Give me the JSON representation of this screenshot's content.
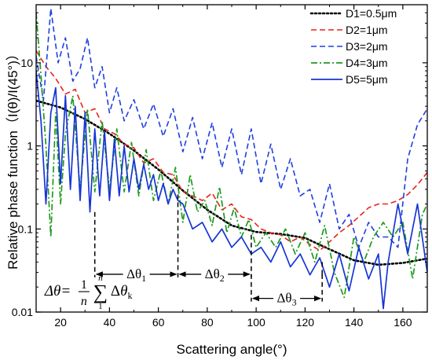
{
  "chart_data": {
    "type": "line",
    "xlabel": "Scattering angle(°)",
    "ylabel": "Relative phase function（I(θ)/I(45°)）",
    "xlim": [
      10,
      170
    ],
    "ylim": [
      0.01,
      50
    ],
    "yscale": "log",
    "x_ticks": [
      20,
      40,
      60,
      80,
      100,
      120,
      140,
      160
    ],
    "x_tick_labels": [
      "20",
      "40",
      "60",
      "80",
      "100",
      "120",
      "140",
      "160"
    ],
    "y_ticks": [
      0.01,
      0.1,
      1,
      10
    ],
    "y_tick_labels": [
      "0.01",
      "0.1",
      "1",
      "10"
    ],
    "grid": false,
    "legend_position": "top-right",
    "series": [
      {
        "name": "D1=0.5μm",
        "color": "#000000",
        "dash": "dotted",
        "x": [
          10,
          20,
          30,
          40,
          50,
          60,
          70,
          80,
          90,
          100,
          110,
          120,
          130,
          140,
          150,
          160,
          170
        ],
        "y": [
          3.5,
          2.9,
          2.1,
          1.4,
          0.88,
          0.52,
          0.29,
          0.17,
          0.11,
          0.092,
          0.087,
          0.078,
          0.057,
          0.042,
          0.037,
          0.039,
          0.044
        ]
      },
      {
        "name": "D2=1μm",
        "color": "#e8231c",
        "dash": "dashed",
        "x": [
          10,
          14,
          18,
          22,
          26,
          30,
          34,
          38,
          42,
          46,
          50,
          54,
          58,
          62,
          66,
          70,
          74,
          78,
          82,
          86,
          90,
          94,
          98,
          102,
          106,
          110,
          114,
          118,
          122,
          126,
          130,
          134,
          138,
          142,
          146,
          150,
          154,
          158,
          162,
          166,
          170
        ],
        "y": [
          14,
          9,
          6.5,
          4.2,
          4.8,
          2.5,
          2.8,
          1.6,
          1.4,
          1.05,
          0.95,
          0.62,
          0.7,
          0.48,
          0.45,
          0.28,
          0.25,
          0.22,
          0.27,
          0.17,
          0.2,
          0.14,
          0.13,
          0.1,
          0.09,
          0.085,
          0.07,
          0.08,
          0.065,
          0.055,
          0.07,
          0.09,
          0.11,
          0.14,
          0.18,
          0.2,
          0.2,
          0.22,
          0.26,
          0.34,
          0.48
        ]
      },
      {
        "name": "D3=2μm",
        "color": "#1f3fe0",
        "dash": "dashed",
        "x": [
          10,
          13,
          16,
          19,
          22,
          25,
          28,
          31,
          34,
          37,
          40,
          43,
          46,
          50,
          54,
          58,
          62,
          66,
          70,
          74,
          78,
          82,
          86,
          90,
          94,
          98,
          102,
          106,
          110,
          114,
          118,
          122,
          126,
          130,
          134,
          138,
          142,
          146,
          150,
          154,
          158,
          162,
          166,
          170
        ],
        "y": [
          12,
          3.5,
          45,
          10,
          20,
          6,
          8.5,
          20,
          5,
          9,
          2.5,
          5,
          2,
          3.6,
          1.6,
          3.2,
          1.3,
          2.8,
          0.85,
          2.2,
          0.7,
          1.9,
          0.55,
          1.6,
          0.45,
          1.6,
          0.35,
          1.05,
          0.3,
          0.7,
          0.25,
          0.3,
          0.12,
          0.35,
          0.1,
          0.15,
          0.06,
          0.12,
          0.08,
          0.08,
          0.06,
          0.7,
          1.8,
          2.8
        ]
      },
      {
        "name": "D4=3μm",
        "color": "#1e9a1e",
        "dash": "dashdot",
        "x": [
          10,
          12,
          14,
          16,
          18,
          20,
          22,
          25,
          28,
          31,
          34,
          37,
          40,
          43,
          46,
          49,
          52,
          55,
          58,
          61,
          64,
          67,
          70,
          73,
          76,
          79,
          82,
          85,
          88,
          91,
          94,
          97,
          100,
          104,
          108,
          112,
          116,
          120,
          124,
          128,
          132,
          136,
          140,
          144,
          148,
          152,
          156,
          160,
          164,
          168,
          170
        ],
        "y": [
          40,
          7,
          1.0,
          0.08,
          2.5,
          0.2,
          1.4,
          4.0,
          0.3,
          2.8,
          0.28,
          2.0,
          0.3,
          1.6,
          0.28,
          1.1,
          0.25,
          0.9,
          0.22,
          0.5,
          0.2,
          0.55,
          0.12,
          0.45,
          0.16,
          0.22,
          0.11,
          0.32,
          0.09,
          0.18,
          0.08,
          0.13,
          0.06,
          0.09,
          0.06,
          0.1,
          0.05,
          0.09,
          0.04,
          0.11,
          0.03,
          0.015,
          0.08,
          0.04,
          0.08,
          0.12,
          0.08,
          0.12,
          0.025,
          0.15,
          0.2
        ]
      },
      {
        "name": "D5=5μm",
        "color": "#1635d6",
        "dash": "solid",
        "x": [
          10,
          12,
          14,
          16,
          18,
          20,
          22,
          24,
          26,
          28,
          30,
          32,
          34,
          36,
          38,
          40,
          42,
          44,
          46,
          48,
          50,
          52,
          54,
          56,
          58,
          60,
          62,
          64,
          66,
          68,
          70,
          74,
          78,
          82,
          86,
          90,
          94,
          98,
          102,
          106,
          110,
          114,
          118,
          122,
          126,
          130,
          134,
          138,
          142,
          146,
          150,
          152,
          154,
          158,
          162,
          166,
          170
        ],
        "y": [
          8,
          2.0,
          0.2,
          2.5,
          5.0,
          0.35,
          4.0,
          0.3,
          3.0,
          0.22,
          2.5,
          0.16,
          1.6,
          0.25,
          1.5,
          0.22,
          1.2,
          0.25,
          1.0,
          0.28,
          0.7,
          0.3,
          0.6,
          0.3,
          0.45,
          0.22,
          0.35,
          0.2,
          0.3,
          0.22,
          0.2,
          0.1,
          0.12,
          0.07,
          0.1,
          0.06,
          0.08,
          0.05,
          0.06,
          0.04,
          0.07,
          0.035,
          0.05,
          0.028,
          0.045,
          0.02,
          0.05,
          0.018,
          0.06,
          0.025,
          0.05,
          0.011,
          0.04,
          0.2,
          0.05,
          0.2,
          0.03
        ]
      }
    ],
    "annotations": {
      "markers": [
        {
          "label": "Δθ1",
          "x": 34,
          "y": 0.16
        },
        {
          "label": "Δθ2",
          "x": 68,
          "y": 0.26
        },
        {
          "label": "Δθ3",
          "x": 98,
          "y": 0.085
        },
        {
          "label": "",
          "x": 127,
          "y": 0.04
        }
      ],
      "spans": [
        {
          "label": "Δθ1",
          "x1": 34,
          "x2": 68,
          "y": 0.0285
        },
        {
          "label": "Δθ2",
          "x1": 68,
          "x2": 98,
          "y": 0.0285
        },
        {
          "label": "Δθ3",
          "x1": 98,
          "x2": 127,
          "y": 0.0146
        }
      ],
      "formula": {
        "lhs": "Δθ=",
        "frac_num": "1",
        "frac_den": "n",
        "sum_top": "n",
        "sum_bottom": "1",
        "sigma": "∑",
        "rhs": "Δθ",
        "rhs_sub": "k",
        "x": 13.5,
        "y": 0.018
      }
    }
  }
}
